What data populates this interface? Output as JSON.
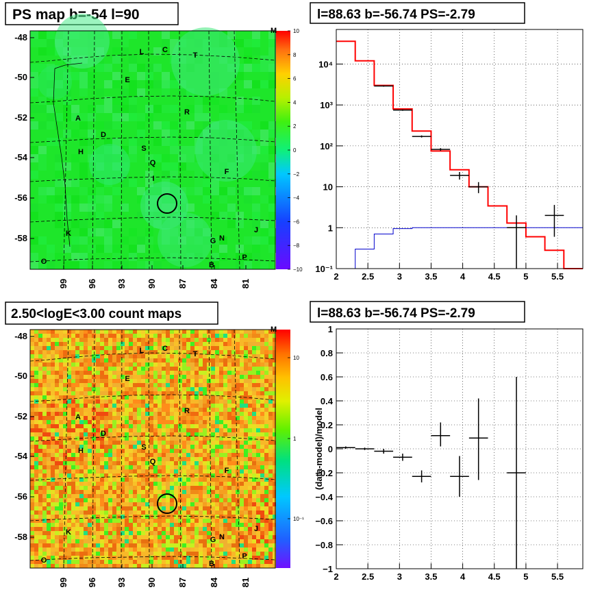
{
  "panels": {
    "ps_map": {
      "title": "PS map b=-54 l=90",
      "corner_label": "M",
      "y_ticks": [
        "-48",
        "-50",
        "-52",
        "-54",
        "-56",
        "-58"
      ],
      "x_ticks": [
        "99",
        "96",
        "93",
        "90",
        "87",
        "84",
        "81"
      ],
      "colorbar_ticks": [
        "10",
        "8",
        "6",
        "4",
        "2",
        "0",
        "−2",
        "−4",
        "−6",
        "−8",
        "−10"
      ],
      "colorbar_range": [
        -10,
        10
      ],
      "source_labels": [
        "L",
        "C",
        "T",
        "E",
        "R",
        "A",
        "D",
        "H",
        "S",
        "Q",
        "I",
        "F",
        "K",
        "G",
        "N",
        "J",
        "O",
        "B",
        "P"
      ]
    },
    "count_map": {
      "title": "2.50<logE<3.00 count maps",
      "corner_label": "M",
      "y_ticks": [
        "-48",
        "-50",
        "-52",
        "-54",
        "-56",
        "-58"
      ],
      "x_ticks": [
        "99",
        "96",
        "93",
        "90",
        "87",
        "84",
        "81"
      ],
      "colorbar_ticks": [
        "10",
        "1",
        "10⁻¹"
      ],
      "source_labels": [
        "L",
        "C",
        "T",
        "E",
        "R",
        "A",
        "D",
        "H",
        "S",
        "Q",
        "F",
        "K",
        "G",
        "N",
        "J",
        "O",
        "B",
        "P"
      ]
    }
  },
  "chart_data": [
    {
      "type": "line",
      "title": "l=88.63 b=-56.74 PS=-2.79",
      "xlabel": "",
      "ylabel": "",
      "xlim": [
        2,
        5.9
      ],
      "ylim": [
        0.1,
        70000
      ],
      "yscale": "log",
      "grid": true,
      "x_ticks": [
        "2",
        "2.5",
        "3",
        "3.5",
        "4",
        "4.5",
        "5",
        "5.5"
      ],
      "y_ticks": [
        "10⁻¹",
        "1",
        "10",
        "10²",
        "10³",
        "10⁴"
      ],
      "bin_edges": [
        2.0,
        2.3,
        2.6,
        2.9,
        3.2,
        3.5,
        3.8,
        4.1,
        4.4,
        4.7,
        5.0,
        5.3,
        5.6,
        5.9
      ],
      "series": [
        {
          "color": "#ff0000",
          "step_values": [
            36000,
            12000,
            3000,
            800,
            230,
            75,
            26,
            10,
            3.4,
            1.3,
            0.6,
            0.28,
            0.1
          ]
        },
        {
          "color": "#0000cc",
          "step_values": [
            0.1,
            0.3,
            0.7,
            0.95,
            1.0,
            1.0,
            1.0,
            1.0,
            1.0,
            1.0,
            1.0,
            1.0,
            1.0
          ]
        },
        {
          "color": "#000000",
          "points": [
            {
              "x": 2.75,
              "y": 2900,
              "xerr": 0.15,
              "ylo": 2800,
              "yhi": 3000
            },
            {
              "x": 3.05,
              "y": 750,
              "xerr": 0.15,
              "ylo": 720,
              "yhi": 780
            },
            {
              "x": 3.35,
              "y": 170,
              "xerr": 0.15,
              "ylo": 160,
              "yhi": 180
            },
            {
              "x": 3.65,
              "y": 82,
              "xerr": 0.15,
              "ylo": 76,
              "yhi": 88
            },
            {
              "x": 3.95,
              "y": 19,
              "xerr": 0.15,
              "ylo": 15,
              "yhi": 23
            },
            {
              "x": 4.25,
              "y": 10,
              "xerr": 0.15,
              "ylo": 7,
              "yhi": 13
            },
            {
              "x": 4.85,
              "y": 1,
              "xerr": 0.15,
              "ylo": 0.1,
              "yhi": 2.0
            },
            {
              "x": 5.45,
              "y": 2,
              "xerr": 0.15,
              "ylo": 0.6,
              "yhi": 3.6
            }
          ]
        }
      ]
    },
    {
      "type": "scatter",
      "title": "l=88.63 b=-56.74 PS=-2.79",
      "xlabel": "",
      "ylabel": "(data-model)/model",
      "xlim": [
        2,
        5.9
      ],
      "ylim": [
        -1,
        1
      ],
      "grid": true,
      "x_ticks": [
        "2",
        "2.5",
        "3",
        "3.5",
        "4",
        "4.5",
        "5",
        "5.5"
      ],
      "y_ticks": [
        "−1",
        "−0.8",
        "−0.6",
        "−0.4",
        "−0.2",
        "0",
        "0.2",
        "0.4",
        "0.6",
        "0.8",
        "1"
      ],
      "points": [
        {
          "x": 2.15,
          "y": 0.01,
          "xerr": 0.15,
          "ylo": 0.0,
          "yhi": 0.02
        },
        {
          "x": 2.45,
          "y": 0.0,
          "xerr": 0.15,
          "ylo": -0.01,
          "yhi": 0.01
        },
        {
          "x": 2.75,
          "y": -0.02,
          "xerr": 0.15,
          "ylo": -0.04,
          "yhi": 0.0
        },
        {
          "x": 3.05,
          "y": -0.07,
          "xerr": 0.15,
          "ylo": -0.1,
          "yhi": -0.04
        },
        {
          "x": 3.35,
          "y": -0.23,
          "xerr": 0.15,
          "ylo": -0.28,
          "yhi": -0.18
        },
        {
          "x": 3.65,
          "y": 0.11,
          "xerr": 0.15,
          "ylo": 0.02,
          "yhi": 0.22
        },
        {
          "x": 3.95,
          "y": -0.23,
          "xerr": 0.15,
          "ylo": -0.4,
          "yhi": -0.06
        },
        {
          "x": 4.25,
          "y": 0.09,
          "xerr": 0.15,
          "ylo": -0.26,
          "yhi": 0.42
        },
        {
          "x": 4.85,
          "y": -0.2,
          "xerr": 0.15,
          "ylo": -1.0,
          "yhi": 0.6
        }
      ]
    }
  ]
}
